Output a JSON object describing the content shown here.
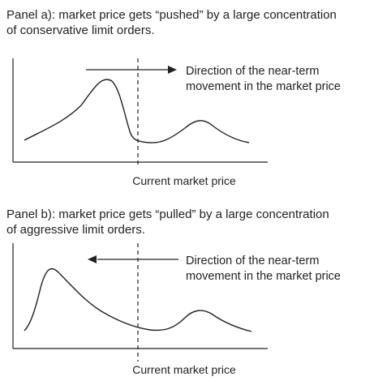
{
  "panel_a": {
    "caption_line1": "Panel a): market price gets “pushed” by a large concentration",
    "caption_line2": "of conservative limit orders.",
    "direction_line1": "Direction of the near-term",
    "direction_line2": "movement in the market price",
    "x_axis_label": "Current market price",
    "arrow_direction": "right"
  },
  "panel_b": {
    "caption_line1": "Panel b): market price gets “pulled” by a large concentration",
    "caption_line2": "of aggressive limit orders.",
    "direction_line1": "Direction of the near-term",
    "direction_line2": "movement in the market price",
    "x_axis_label": "Current market price",
    "arrow_direction": "left"
  },
  "colors": {
    "ink": "#222222"
  }
}
